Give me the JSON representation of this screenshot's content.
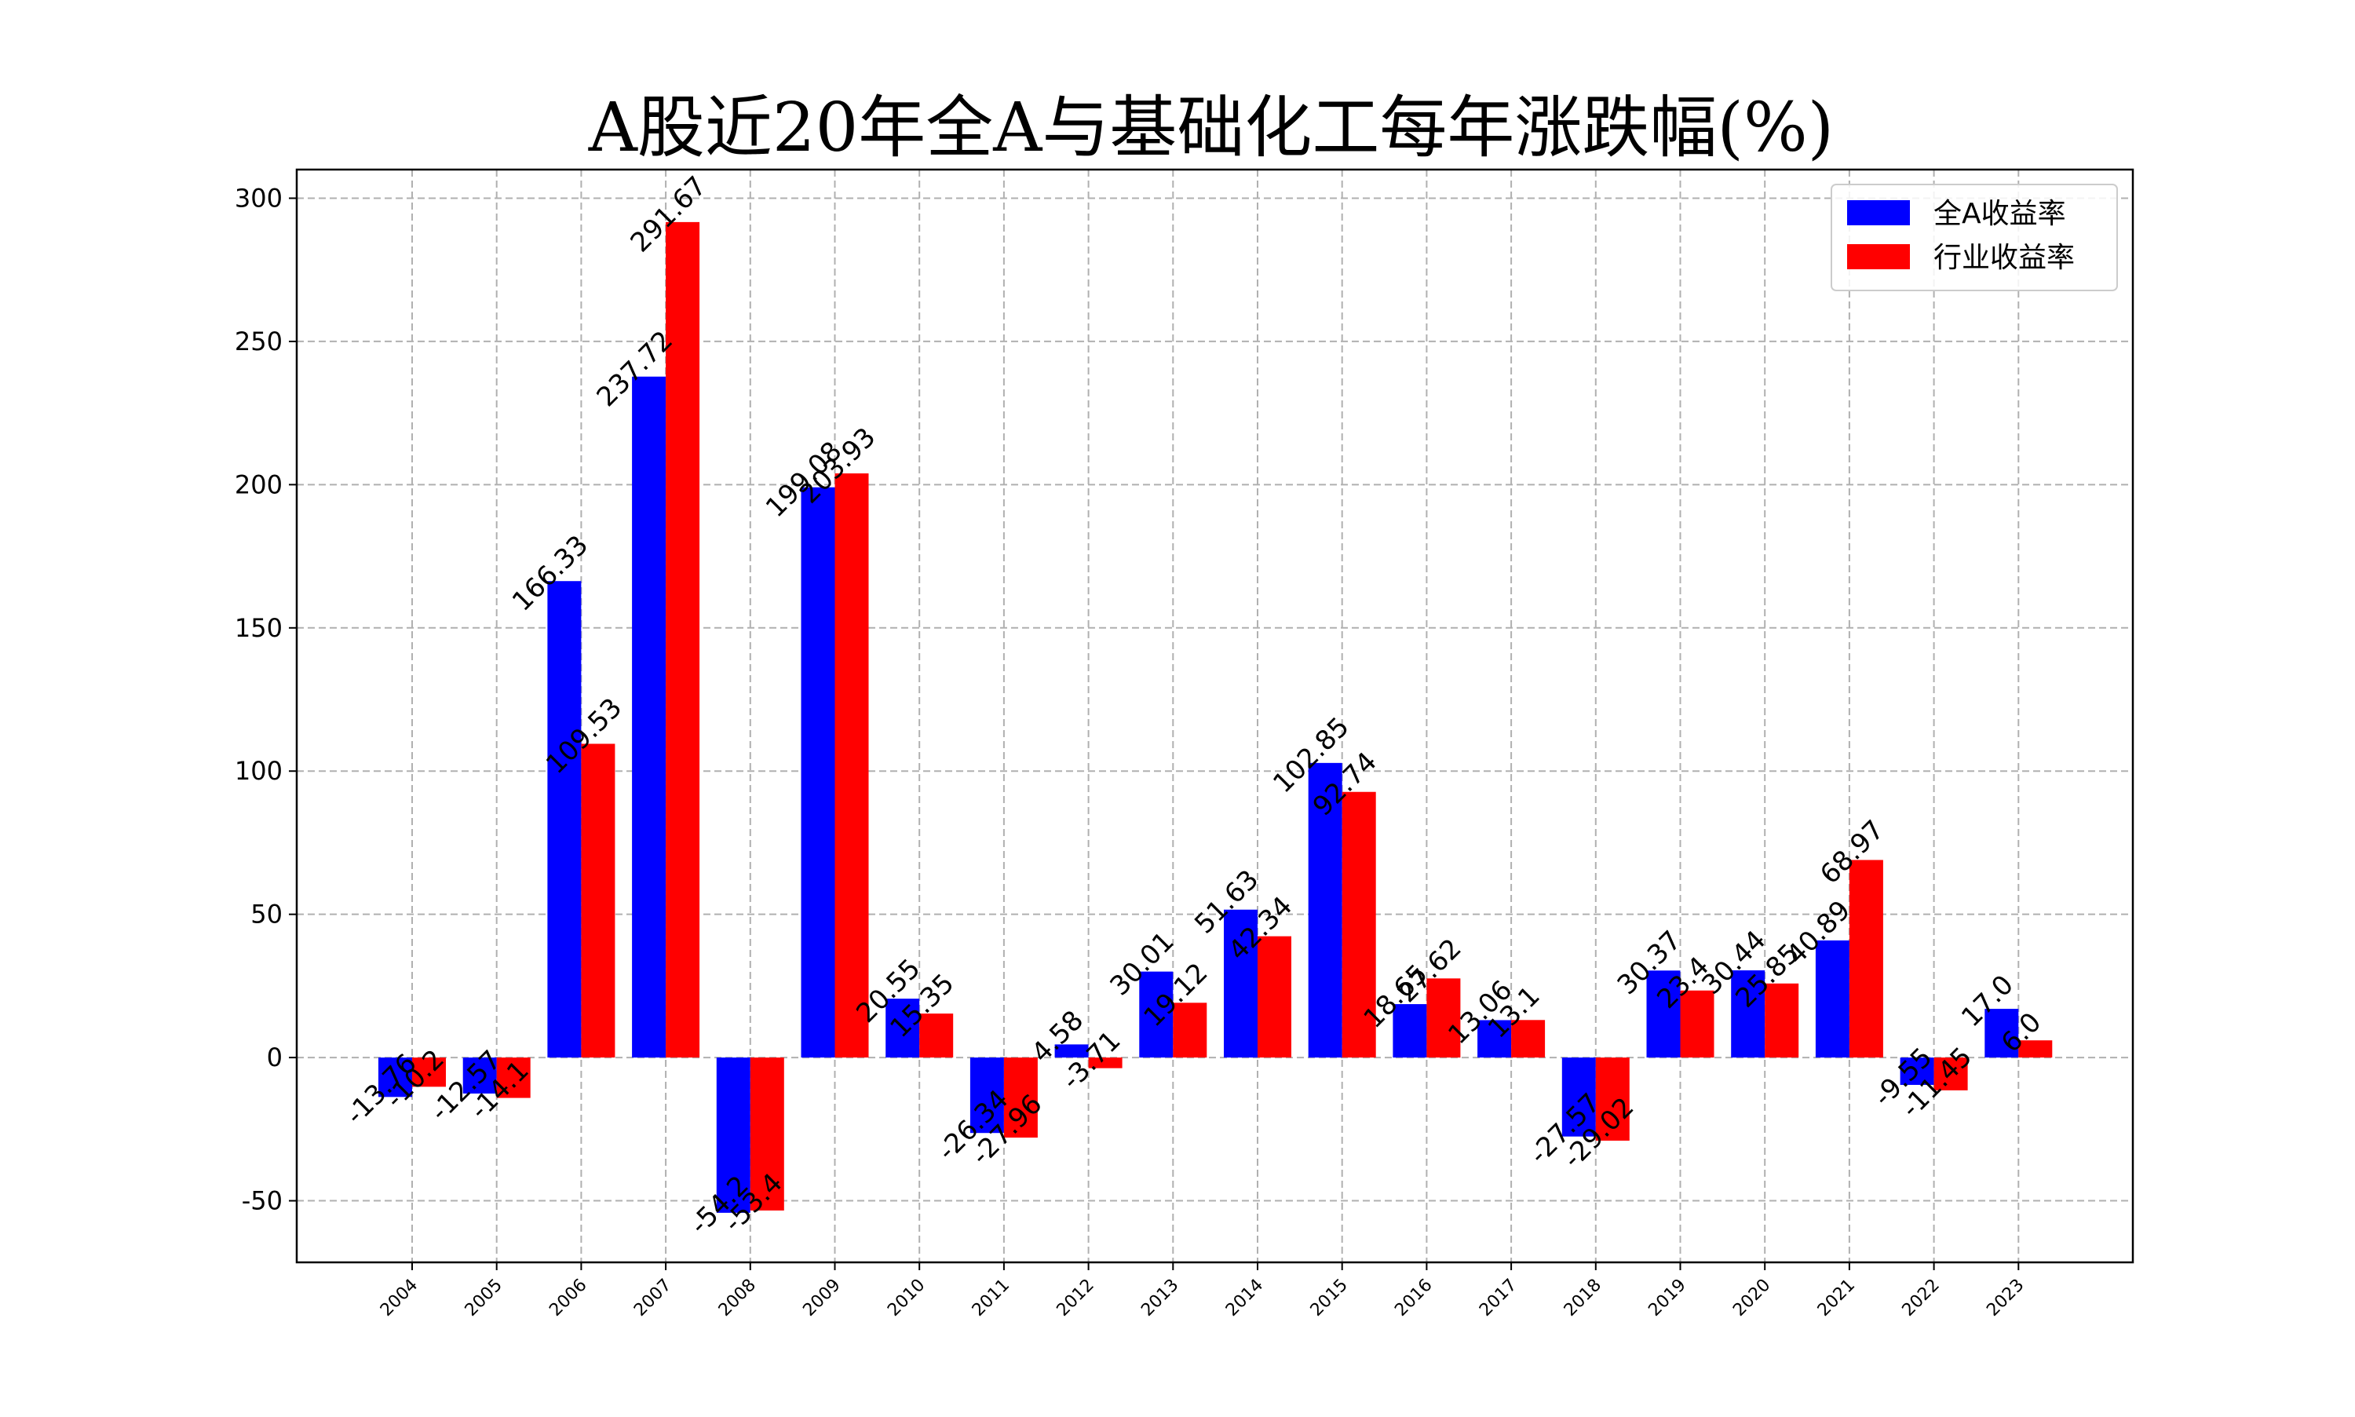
{
  "chart_data": {
    "type": "bar",
    "title": "A股近20年全A与基础化工每年涨跌幅(%)",
    "xlabel": "",
    "ylabel": "",
    "categories": [
      "2004",
      "2005",
      "2006",
      "2007",
      "2008",
      "2009",
      "2010",
      "2011",
      "2012",
      "2013",
      "2014",
      "2015",
      "2016",
      "2017",
      "2018",
      "2019",
      "2020",
      "2021",
      "2022",
      "2023"
    ],
    "series": [
      {
        "name": "全A收益率",
        "color": "#0000ff",
        "values": [
          -13.76,
          -12.57,
          166.33,
          237.72,
          -54.2,
          199.08,
          20.55,
          -26.34,
          4.58,
          30.01,
          51.63,
          102.85,
          18.65,
          13.06,
          -27.57,
          30.37,
          30.44,
          40.89,
          -9.55,
          17.0
        ],
        "labels": [
          "-13.76",
          "-12.57",
          "166.33",
          "237.72",
          "-54.2",
          "199.08",
          "20.55",
          "-26.34",
          "4.58",
          "30.01",
          "51.63",
          "102.85",
          "18.65",
          "13.06",
          "-27.57",
          "30.37",
          "30.44",
          "40.89",
          "-9.55",
          "17.0"
        ]
      },
      {
        "name": "行业收益率",
        "color": "#ff0000",
        "values": [
          -10.2,
          -14.1,
          109.53,
          291.67,
          -53.4,
          203.93,
          15.35,
          -27.96,
          -3.71,
          19.12,
          42.34,
          92.74,
          27.62,
          13.1,
          -29.02,
          23.4,
          25.85,
          68.97,
          -11.45,
          6.0
        ],
        "labels": [
          "-10.2",
          "-14.1",
          "109.53",
          "291.67",
          "-53.4",
          "203.93",
          "15.35",
          "-27.96",
          "-3.71",
          "19.12",
          "42.34",
          "92.74",
          "27.62",
          "13.1",
          "-29.02",
          "23.4",
          "25.85",
          "68.97",
          "-11.45",
          "6.0"
        ]
      }
    ],
    "yticks": [
      -50,
      0,
      50,
      100,
      150,
      200,
      250,
      300
    ],
    "ylim": [
      -71.5,
      310
    ],
    "grid": true,
    "legend_position": "top-right"
  }
}
